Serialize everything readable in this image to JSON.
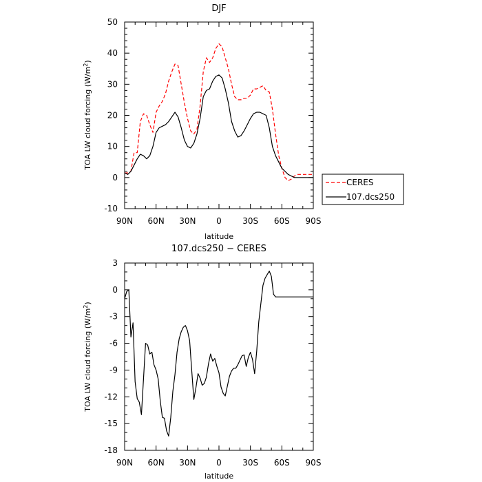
{
  "chart_data": [
    {
      "type": "line",
      "title": "DJF",
      "xlabel": "latitude",
      "ylabel": "TOA LW cloud forcing (W/m",
      "ylabel_sup": "2",
      "ylabel_end": ")",
      "x_unit": "latitude (degrees, N positive)",
      "x_tick_values": [
        90,
        60,
        30,
        0,
        -30,
        -60,
        -90
      ],
      "x_tick_labels": [
        "90N",
        "60N",
        "30N",
        "0",
        "30S",
        "60S",
        "90S"
      ],
      "xlim": [
        90,
        -90
      ],
      "ylim": [
        -10,
        50
      ],
      "y_ticks": [
        -10,
        0,
        10,
        20,
        30,
        40,
        50
      ],
      "legend": {
        "placement": "right",
        "entries": [
          {
            "label": "CERES",
            "color": "#ff0000",
            "style": "dashed"
          },
          {
            "label": "107.dcs250",
            "color": "#000000",
            "style": "solid"
          }
        ]
      },
      "x": [
        90,
        87,
        84,
        81,
        78,
        75,
        72,
        69,
        66,
        63,
        60,
        57,
        54,
        51,
        48,
        45,
        42,
        39,
        36,
        33,
        30,
        27,
        24,
        21,
        18,
        15,
        12,
        9,
        6,
        3,
        0,
        -3,
        -6,
        -9,
        -12,
        -15,
        -18,
        -21,
        -24,
        -27,
        -30,
        -33,
        -36,
        -39,
        -42,
        -45,
        -48,
        -51,
        -54,
        -57,
        -60,
        -63,
        -66,
        -69,
        -72,
        -75,
        -78,
        -81,
        -84,
        -87,
        -90
      ],
      "series": [
        {
          "name": "CERES",
          "color": "#ff0000",
          "style": "dashed",
          "values": [
            1.5,
            1.5,
            2,
            8,
            8,
            18,
            20.5,
            20,
            17,
            14.5,
            21,
            23,
            24.5,
            27,
            31,
            34,
            36.5,
            36,
            30,
            24,
            19,
            15,
            14,
            15.5,
            23,
            34,
            38.5,
            37,
            38.5,
            41.5,
            43,
            42,
            38.5,
            35,
            30,
            26,
            25,
            25,
            25.5,
            25.5,
            26.5,
            28.5,
            28.5,
            29,
            29.5,
            28,
            27.5,
            22,
            14,
            7,
            3,
            0,
            -1,
            -0.5,
            0.5,
            1,
            1,
            1,
            1,
            1,
            1
          ]
        },
        {
          "name": "107.dcs250",
          "color": "#000000",
          "style": "solid",
          "values": [
            1.5,
            1,
            2,
            4,
            6,
            7.5,
            7,
            6,
            7,
            10,
            14.5,
            16,
            16.5,
            17,
            18,
            19.5,
            21,
            19.5,
            16,
            12,
            10,
            9.5,
            11,
            14,
            19,
            26,
            28,
            28.5,
            31,
            32.5,
            33,
            32,
            28.5,
            24,
            18,
            15,
            13,
            13.5,
            15,
            17,
            19,
            20.5,
            21,
            21,
            20.5,
            20,
            16,
            10,
            7,
            5,
            3,
            2,
            1,
            0.5,
            0,
            0,
            0,
            0,
            0,
            0,
            0
          ]
        }
      ]
    },
    {
      "type": "line",
      "title": "107.dcs250 − CERES",
      "xlabel": "latitude",
      "ylabel": "TOA LW cloud forcing (W/m",
      "ylabel_sup": "2",
      "ylabel_end": ")",
      "x_unit": "latitude (degrees, N positive)",
      "x_tick_values": [
        90,
        60,
        30,
        0,
        -30,
        -60,
        -90
      ],
      "x_tick_labels": [
        "90N",
        "60N",
        "30N",
        "0",
        "30S",
        "60S",
        "90S"
      ],
      "xlim": [
        90,
        -90
      ],
      "ylim": [
        -18,
        3
      ],
      "y_ticks": [
        -18,
        -15,
        -12,
        -9,
        -6,
        -3,
        0,
        3
      ],
      "x": [
        90,
        88,
        86,
        84,
        82,
        80,
        78,
        76,
        74,
        72,
        70,
        68,
        66,
        64,
        62,
        60,
        58,
        56,
        54,
        52,
        50,
        48,
        46,
        44,
        42,
        40,
        38,
        36,
        34,
        32,
        30,
        28,
        26,
        24,
        22,
        20,
        18,
        16,
        14,
        12,
        10,
        8,
        6,
        4,
        2,
        0,
        -2,
        -4,
        -6,
        -8,
        -10,
        -12,
        -14,
        -16,
        -18,
        -20,
        -22,
        -24,
        -26,
        -28,
        -30,
        -32,
        -34,
        -36,
        -38,
        -40,
        -42,
        -44,
        -46,
        -48,
        -50,
        -52,
        -54,
        -56,
        -58,
        -60,
        -62,
        -64,
        -66,
        -68,
        -70,
        -72,
        -74,
        -76,
        -78,
        -80,
        -82,
        -84,
        -86,
        -88,
        -90
      ],
      "series": [
        {
          "name": "107.dcs250",
          "color": "#000000",
          "style": "solid",
          "values": [
            -1,
            -0.2,
            0,
            -5.3,
            -3.7,
            -10.3,
            -12.2,
            -12.6,
            -14,
            -10,
            -6,
            -6.2,
            -7.2,
            -7,
            -8.4,
            -9,
            -10,
            -12.5,
            -14.3,
            -14.4,
            -15.8,
            -16.4,
            -14.3,
            -11.4,
            -9.5,
            -7,
            -5.5,
            -4.7,
            -4.2,
            -4,
            -4.6,
            -5.7,
            -9,
            -12.3,
            -11,
            -9.4,
            -9.9,
            -10.7,
            -10.5,
            -9.8,
            -8.3,
            -7.2,
            -8,
            -7.7,
            -8.6,
            -9.3,
            -10.9,
            -11.6,
            -11.9,
            -10.8,
            -9.7,
            -9.1,
            -8.8,
            -8.8,
            -8.4,
            -7.9,
            -7.4,
            -7.3,
            -8.6,
            -7.6,
            -7,
            -7.8,
            -9.4,
            -6.9,
            -3.6,
            -1.5,
            0.5,
            1.3,
            1.7,
            2.1,
            1.5,
            -0.5,
            -0.8,
            -0.8,
            -0.8,
            -0.8,
            -0.8,
            -0.8,
            -0.8,
            -0.8,
            -0.8,
            -0.8,
            -0.8,
            -0.8,
            -0.8,
            -0.8,
            -0.8,
            -0.8,
            -0.8,
            -0.8,
            -0.8
          ]
        }
      ]
    }
  ]
}
